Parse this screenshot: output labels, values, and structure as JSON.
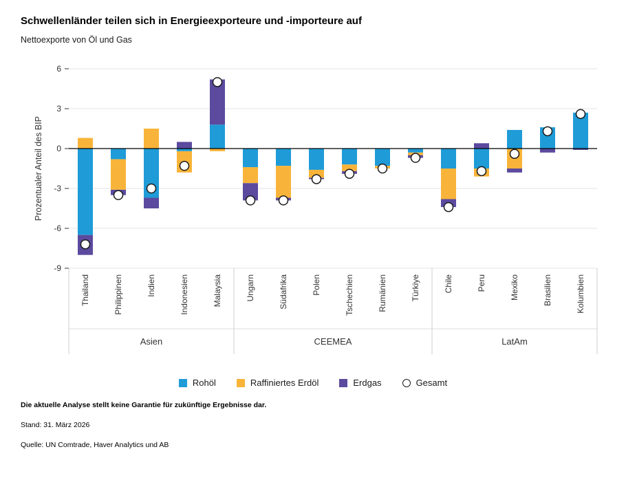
{
  "chart_data": {
    "type": "bar",
    "stacked": true,
    "title": "Schwellenländer teilen sich in Energieexporteure und -importeure auf",
    "subtitle": "Nettoexporte von Öl und Gas",
    "ylabel": "Prozentualer Anteil des BIP",
    "ylim": [
      -9,
      6
    ],
    "yticks": [
      6,
      3,
      0,
      -3,
      -6,
      -9
    ],
    "grid": true,
    "legend_position": "bottom",
    "groups": [
      {
        "label": "Asien",
        "countries": [
          "Thailand",
          "Philippinen",
          "Indien",
          "Indonesien",
          "Malaysia"
        ]
      },
      {
        "label": "CEEMEA",
        "countries": [
          "Ungarn",
          "Südafrika",
          "Polen",
          "Tschechien",
          "Rumänien",
          "Türkiye"
        ]
      },
      {
        "label": "LatAm",
        "countries": [
          "Chile",
          "Peru",
          "Mexiko",
          "Brasilien",
          "Kolumbien"
        ]
      }
    ],
    "series": [
      {
        "name": "Rohöl",
        "color": "#1F9BD7",
        "values": [
          -6.5,
          -0.8,
          -3.7,
          -0.2,
          1.8,
          -1.4,
          -1.3,
          -1.6,
          -1.2,
          -1.3,
          -0.3,
          -1.5,
          -1.5,
          1.4,
          1.6,
          2.7
        ]
      },
      {
        "name": "Raffiniertes Erdöl",
        "color": "#F8B43A",
        "values": [
          0.8,
          -2.3,
          1.5,
          -1.6,
          -0.2,
          -1.2,
          -2.4,
          -0.6,
          -0.5,
          -0.2,
          -0.2,
          -2.3,
          -0.6,
          -1.5,
          0,
          0
        ]
      },
      {
        "name": "Erdgas",
        "color": "#5B4A9E",
        "values": [
          -1.5,
          -0.4,
          -0.8,
          0.5,
          3.4,
          -1.3,
          -0.2,
          -0.1,
          -0.2,
          0,
          -0.2,
          -0.6,
          0.4,
          -0.3,
          -0.3,
          -0.1
        ]
      }
    ],
    "total": {
      "name": "Gesamt",
      "marker": "circle",
      "values": [
        -7.2,
        -3.5,
        -3.0,
        -1.3,
        5.0,
        -3.9,
        -3.9,
        -2.3,
        -1.9,
        -1.5,
        -0.7,
        -4.4,
        -1.7,
        -0.4,
        1.3,
        2.6
      ]
    }
  },
  "footnotes": {
    "disclaimer": "Die aktuelle Analyse stellt keine Garantie für zukünftige Ergebnisse dar.",
    "as_of": "Stand: 31. März 2026",
    "source": "Quelle: UN Comtrade, Haver Analytics und AB"
  }
}
